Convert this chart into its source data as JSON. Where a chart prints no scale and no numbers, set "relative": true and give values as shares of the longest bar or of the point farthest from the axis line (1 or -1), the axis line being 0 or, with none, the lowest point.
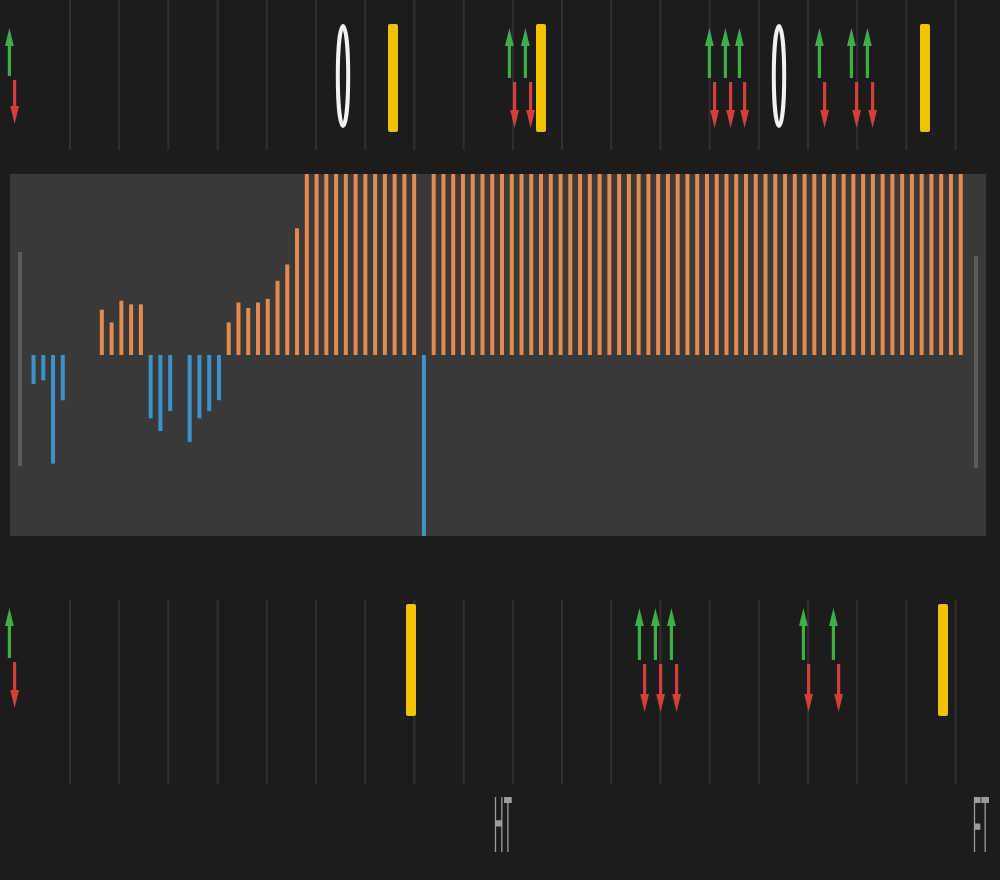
{
  "chart_data": {
    "type": "bar",
    "relative": true,
    "categories": [
      null,
      null,
      null,
      null,
      null,
      null,
      null,
      null,
      null,
      null,
      null,
      null,
      null,
      null,
      null,
      null,
      null,
      null,
      null,
      null,
      null,
      null,
      null,
      null,
      null,
      null,
      null,
      null,
      null,
      null,
      null,
      null,
      null,
      null,
      null,
      null,
      null,
      null,
      null,
      null,
      null,
      null,
      null,
      null,
      null,
      null,
      null,
      null,
      null,
      null,
      "HT",
      null,
      null,
      null,
      null,
      null,
      null,
      null,
      null,
      null,
      null,
      null,
      null,
      null,
      null,
      null,
      null,
      null,
      null,
      null,
      null,
      null,
      null,
      null,
      null,
      null,
      null,
      null,
      null,
      null,
      null,
      null,
      null,
      null,
      null,
      null,
      null,
      null,
      null,
      null,
      null,
      null,
      null,
      null,
      null,
      null,
      null,
      null,
      null,
      "FT"
    ],
    "series": [
      {
        "color": "#e38b4f",
        "values": [
          null,
          null,
          null,
          null,
          null,
          null,
          null,
          null,
          null,
          0.25,
          0.18,
          0.3,
          0.28,
          0.28,
          null,
          null,
          null,
          null,
          null,
          null,
          null,
          null,
          0.18,
          0.29,
          0.26,
          0.29,
          0.31,
          0.41,
          0.5,
          0.7,
          1,
          1,
          1,
          1,
          1,
          1,
          1,
          1,
          1,
          1,
          1,
          1,
          null,
          1,
          1,
          1,
          1,
          1,
          1,
          1,
          1,
          1,
          1,
          1,
          1,
          1,
          1,
          1,
          1,
          1,
          1,
          1,
          1,
          1,
          1,
          1,
          1,
          1,
          1,
          1,
          1,
          1,
          1,
          1,
          1,
          1,
          1,
          1,
          1,
          1,
          1,
          1,
          1,
          1,
          1,
          1,
          1,
          1,
          1,
          1,
          1,
          1,
          1,
          1,
          1,
          1,
          1,
          1,
          null,
          null
        ]
      },
      {
        "color": "#3d93c9",
        "values": [
          null,
          null,
          -0.16,
          -0.14,
          -0.6,
          -0.25,
          null,
          null,
          null,
          null,
          null,
          null,
          null,
          null,
          -0.35,
          -0.42,
          -0.31,
          null,
          -0.48,
          -0.35,
          -0.31,
          -0.25,
          null,
          null,
          null,
          null,
          null,
          null,
          null,
          null,
          null,
          null,
          null,
          null,
          null,
          null,
          null,
          null,
          null,
          null,
          null,
          null,
          -1,
          null,
          null,
          null,
          null,
          null,
          null,
          null,
          null,
          null,
          null,
          null,
          null,
          null,
          null,
          null,
          null,
          null,
          null,
          null,
          null,
          null,
          null,
          null,
          null,
          null,
          null,
          null,
          null,
          null,
          null,
          null,
          null,
          null,
          null,
          null,
          null,
          null,
          null,
          null,
          null,
          null,
          null,
          null,
          null,
          null,
          null,
          null,
          null,
          null,
          null,
          null,
          null,
          null,
          null,
          null,
          null,
          null
        ]
      }
    ]
  }
}
